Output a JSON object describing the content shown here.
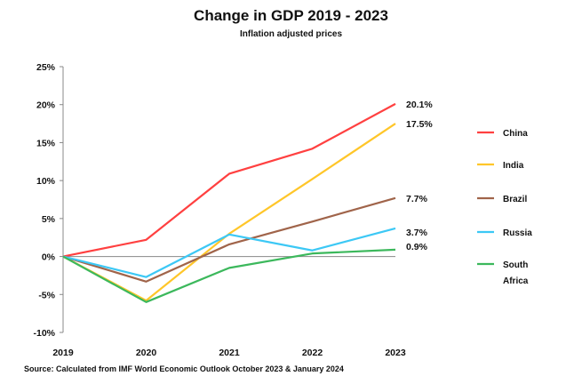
{
  "chart_data": {
    "type": "line",
    "title": "Change in GDP 2019 - 2023",
    "subtitle": "Inflation adjusted prices",
    "source": "Source:  Calculated from IMF World Economic Outlook October 2023 & January 2024",
    "xlabel": "",
    "ylabel": "",
    "categories": [
      "2019",
      "2020",
      "2021",
      "2022",
      "2023"
    ],
    "ylim": [
      -10,
      25
    ],
    "yticks": [
      25,
      20,
      15,
      10,
      5,
      0,
      -5,
      -10
    ],
    "ytick_labels": [
      "25%",
      "20%",
      "15%",
      "10%",
      "5%",
      "0%",
      "-5%",
      "-10%"
    ],
    "legend_position": "right",
    "series": [
      {
        "name": "China",
        "color": "#ff4040",
        "values": [
          0,
          2.2,
          10.9,
          14.2,
          20.1
        ],
        "end_label": "20.1%"
      },
      {
        "name": "India",
        "color": "#ffc629",
        "values": [
          0,
          -5.8,
          3.0,
          10.2,
          17.5
        ],
        "end_label": "17.5%"
      },
      {
        "name": "Brazil",
        "color": "#a0644a",
        "values": [
          0,
          -3.3,
          1.6,
          4.6,
          7.7
        ],
        "end_label": "7.7%"
      },
      {
        "name": "Russia",
        "color": "#3cc8f5",
        "values": [
          0,
          -2.7,
          2.9,
          0.8,
          3.7
        ],
        "end_label": "3.7%"
      },
      {
        "name": "South Africa",
        "name_lines": [
          "South",
          "Africa"
        ],
        "color": "#3cb85c",
        "values": [
          0,
          -6.0,
          -1.5,
          0.4,
          0.9
        ],
        "end_label": "0.9%"
      }
    ]
  }
}
